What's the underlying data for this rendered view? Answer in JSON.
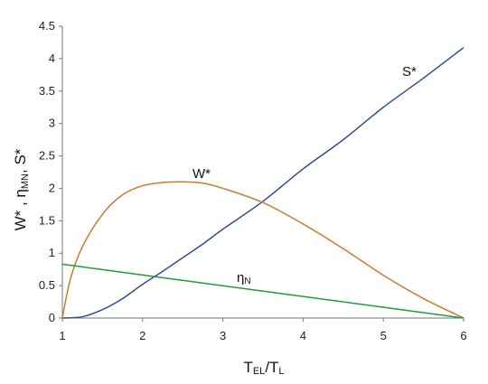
{
  "chart_data": {
    "type": "line",
    "xlabel": {
      "main": "T",
      "sub1": "EL",
      "mid": "/T",
      "sub2": "L"
    },
    "ylabel": {
      "part1": "W* , η",
      "sub": "MN",
      "part2": ", S*"
    },
    "xlim": [
      1,
      6
    ],
    "ylim": [
      0,
      4.5
    ],
    "xticks": [
      "1",
      "2",
      "3",
      "4",
      "5",
      "6"
    ],
    "yticks": [
      "0",
      "0.5",
      "1",
      "1.5",
      "2",
      "2.5",
      "3",
      "3.5",
      "4",
      "4.5"
    ],
    "grid": false,
    "series": [
      {
        "name": "S*",
        "color": "#2f4f8f",
        "x": [
          1,
          1.25,
          1.5,
          1.75,
          2,
          2.25,
          2.5,
          2.75,
          3,
          3.5,
          4,
          4.5,
          5,
          5.5,
          6
        ],
        "y": [
          0,
          0.02,
          0.13,
          0.3,
          0.52,
          0.72,
          0.93,
          1.14,
          1.37,
          1.8,
          2.3,
          2.75,
          3.25,
          3.7,
          4.17
        ]
      },
      {
        "name": "W*",
        "color": "#cc7a2e",
        "x": [
          1,
          1.1,
          1.25,
          1.5,
          1.75,
          2,
          2.25,
          2.5,
          2.75,
          3,
          3.5,
          4,
          4.5,
          5,
          5.5,
          6
        ],
        "y": [
          0,
          0.6,
          1.1,
          1.6,
          1.9,
          2.04,
          2.09,
          2.1,
          2.08,
          2.0,
          1.78,
          1.45,
          1.07,
          0.66,
          0.3,
          0
        ]
      },
      {
        "name": "η",
        "name_sub": "N",
        "color": "#1e9a3c",
        "x": [
          1,
          6
        ],
        "y": [
          0.83,
          0
        ]
      }
    ]
  }
}
